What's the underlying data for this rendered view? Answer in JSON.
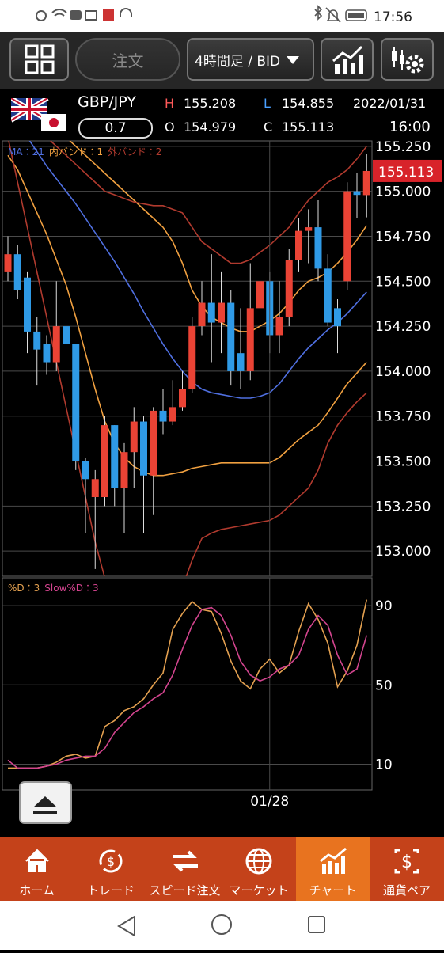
{
  "status_bar": {
    "time": "17:56"
  },
  "toolbar": {
    "order": "注文",
    "timeframe": "4時間足 / BID"
  },
  "quote": {
    "pair": "GBP/JPY",
    "spread": "0.7",
    "high_label": "H",
    "high": "155.208",
    "low_label": "L",
    "low": "154.855",
    "open_label": "O",
    "open": "154.979",
    "close_label": "C",
    "close": "155.113",
    "date": "2022/01/31",
    "time": "16:00"
  },
  "chart_data": [
    {
      "type": "candlestick",
      "up_color": "#ea4335",
      "down_color": "#2f9ae6",
      "open": [
        154.55,
        154.65,
        154.52,
        154.22,
        154.15,
        154.05,
        154.25,
        154.15,
        153.5,
        153.3,
        153.3,
        153.7,
        153.35,
        153.55,
        153.72,
        153.42,
        153.78,
        153.72,
        153.8,
        153.9,
        154.25,
        154.38,
        154.27,
        154.38,
        154.1,
        154.0,
        154.35,
        154.5,
        154.2,
        154.3,
        154.62,
        154.78,
        154.8,
        154.57,
        154.35,
        154.5,
        155.0,
        154.979
      ],
      "high": [
        154.75,
        154.7,
        154.55,
        154.3,
        154.2,
        154.5,
        154.3,
        154.15,
        153.52,
        153.45,
        153.75,
        153.7,
        153.6,
        153.8,
        153.75,
        153.8,
        153.9,
        153.95,
        154.0,
        154.3,
        154.5,
        154.65,
        154.55,
        154.45,
        154.35,
        154.6,
        154.6,
        154.55,
        154.5,
        154.68,
        154.85,
        154.9,
        154.95,
        154.65,
        154.4,
        155.05,
        155.1,
        155.208
      ],
      "low": [
        154.5,
        154.4,
        154.1,
        153.92,
        153.98,
        154.0,
        153.95,
        153.45,
        153.1,
        152.9,
        153.25,
        153.25,
        153.1,
        153.35,
        153.1,
        153.2,
        153.65,
        153.7,
        153.78,
        153.88,
        154.2,
        154.05,
        154.1,
        153.92,
        153.9,
        153.95,
        154.3,
        154.1,
        154.1,
        154.25,
        154.55,
        154.6,
        154.5,
        154.25,
        154.1,
        154.45,
        154.85,
        154.855
      ],
      "close": [
        154.65,
        154.45,
        154.22,
        154.12,
        154.05,
        154.25,
        154.15,
        153.5,
        153.4,
        153.4,
        153.7,
        153.35,
        153.55,
        153.72,
        153.42,
        153.78,
        153.72,
        153.8,
        153.9,
        154.25,
        154.38,
        154.27,
        154.38,
        154.0,
        154.0,
        154.35,
        154.5,
        154.2,
        154.3,
        154.62,
        154.78,
        154.8,
        154.57,
        154.27,
        154.25,
        155.0,
        154.98,
        155.113
      ],
      "indicators": [
        {
          "name": "MA：21",
          "color": "#4f6fe0",
          "lines": [
            [
              155.45,
              155.38,
              155.3,
              155.22,
              155.14,
              155.07,
              155.0,
              154.93,
              154.85,
              154.77,
              154.69,
              154.61,
              154.52,
              154.43,
              154.33,
              154.24,
              154.15,
              154.07,
              154.0,
              153.94,
              153.9,
              153.88,
              153.87,
              153.86,
              153.85,
              153.85,
              153.86,
              153.88,
              153.93,
              154.0,
              154.07,
              154.13,
              154.18,
              154.23,
              154.27,
              154.32,
              154.38,
              154.44
            ]
          ]
        },
        {
          "name": "内バンド：1",
          "color": "#f0a040",
          "lines": [
            [
              155.6,
              155.55,
              155.5,
              155.45,
              155.4,
              155.35,
              155.3,
              155.25,
              155.2,
              155.15,
              155.1,
              155.05,
              155.0,
              154.95,
              154.9,
              154.85,
              154.8,
              154.72,
              154.6,
              154.45,
              154.36,
              154.3,
              154.27,
              154.24,
              154.22,
              154.22,
              154.25,
              154.28,
              154.32,
              154.38,
              154.45,
              154.5,
              154.52,
              154.55,
              154.6,
              154.66,
              154.73,
              154.81
            ],
            [
              155.2,
              155.12,
              155.0,
              154.88,
              154.76,
              154.62,
              154.48,
              154.3,
              154.1,
              153.9,
              153.72,
              153.6,
              153.52,
              153.47,
              153.44,
              153.42,
              153.42,
              153.43,
              153.44,
              153.46,
              153.47,
              153.48,
              153.49,
              153.49,
              153.49,
              153.49,
              153.49,
              153.49,
              153.52,
              153.57,
              153.62,
              153.66,
              153.7,
              153.77,
              153.85,
              153.93,
              153.99,
              154.05
            ]
          ]
        },
        {
          "name": "外バンド：2",
          "color": "#b03a2e",
          "lines": [
            [
              155.5,
              155.45,
              155.4,
              155.35,
              155.3,
              155.25,
              155.2,
              155.15,
              155.1,
              155.05,
              155.0,
              154.98,
              154.96,
              154.94,
              154.93,
              154.92,
              154.92,
              154.9,
              154.88,
              154.8,
              154.72,
              154.68,
              154.64,
              154.6,
              154.6,
              154.62,
              154.66,
              154.7,
              154.75,
              154.8,
              154.88,
              154.95,
              155.0,
              155.05,
              155.08,
              155.12,
              155.18,
              155.25
            ],
            [
              155.3,
              155.05,
              154.8,
              154.55,
              154.3,
              154.05,
              153.8,
              153.55,
              153.3,
              153.05,
              152.85,
              152.8,
              152.78,
              152.76,
              152.75,
              152.75,
              152.75,
              152.77,
              152.8,
              152.95,
              153.07,
              153.1,
              153.12,
              153.13,
              153.14,
              153.15,
              153.16,
              153.17,
              153.2,
              153.25,
              153.3,
              153.35,
              153.45,
              153.6,
              153.7,
              153.77,
              153.83,
              153.88
            ]
          ]
        }
      ],
      "ylim": [
        152.86,
        155.28
      ],
      "yticks": [
        {
          "value": 153,
          "label": "153.000"
        },
        {
          "value": 153.25,
          "label": "153.250"
        },
        {
          "value": 153.5,
          "label": "153.500"
        },
        {
          "value": 153.75,
          "label": "153.750"
        },
        {
          "value": 154,
          "label": "154.000"
        },
        {
          "value": 154.25,
          "label": "154.250"
        },
        {
          "value": 154.5,
          "label": "154.500"
        },
        {
          "value": 154.75,
          "label": "154.750"
        },
        {
          "value": 155,
          "label": "155.000"
        },
        {
          "value": 155.25,
          "label": "155.250"
        }
      ],
      "last_price": {
        "value": 155.113,
        "label": "155.113"
      },
      "last_price_color": "#d8232a",
      "grid": true
    },
    {
      "type": "line",
      "categories": [
        null,
        null,
        null,
        null,
        null,
        null,
        null,
        null,
        null,
        null,
        null,
        null,
        null,
        null,
        null,
        null,
        null,
        null,
        null,
        null,
        null,
        null,
        null,
        null,
        null,
        null,
        null,
        "01/28",
        null,
        null,
        null,
        null,
        null,
        null,
        null,
        null,
        null,
        null
      ],
      "series": [
        {
          "name": "%D：3",
          "color": "#e3a050",
          "values": [
            8,
            8,
            8,
            8,
            9,
            11,
            14,
            15,
            13,
            14,
            29,
            32,
            37,
            39,
            43,
            50,
            56,
            78,
            86,
            92,
            88,
            87,
            76,
            62,
            52,
            48,
            58,
            63,
            56,
            60,
            77,
            91,
            83,
            71,
            49,
            57,
            70,
            93
          ]
        },
        {
          "name": "Slow%D：3",
          "color": "#d2448e",
          "values": [
            12,
            8,
            8,
            8,
            9,
            10,
            12,
            13,
            14,
            14,
            18,
            26,
            31,
            36,
            39,
            43,
            46,
            55,
            68,
            80,
            88,
            89,
            85,
            75,
            62,
            55,
            52,
            54,
            58,
            60,
            65,
            78,
            85,
            80,
            65,
            55,
            58,
            75
          ]
        }
      ],
      "ylim": [
        -3,
        104
      ],
      "yticks": [
        10,
        50,
        90
      ],
      "grid": true
    }
  ],
  "bottom_nav": {
    "items": [
      "ホーム",
      "トレード",
      "スピード注文",
      "マーケット",
      "チャート",
      "通貨ペア"
    ],
    "active": 4
  }
}
